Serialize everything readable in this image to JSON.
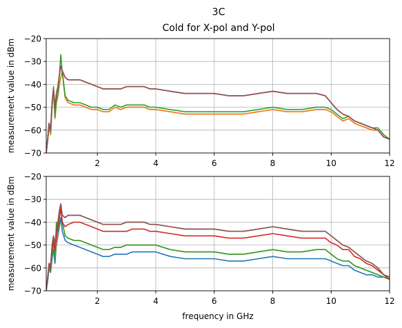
{
  "title": "3C",
  "subtitle": "Cold for X-pol and Y-pol",
  "chart_data": [
    {
      "type": "line",
      "xlabel": "",
      "ylabel": "measurement value in dBm",
      "xlim": [
        0.25,
        12
      ],
      "ylim": [
        -70,
        -20
      ],
      "xticks": [
        2,
        4,
        6,
        8,
        10,
        12
      ],
      "yticks": [
        -20,
        -30,
        -40,
        -50,
        -60,
        -70
      ],
      "grid": true,
      "x": [
        0.25,
        0.3,
        0.35,
        0.4,
        0.45,
        0.5,
        0.55,
        0.6,
        0.65,
        0.7,
        0.75,
        0.8,
        0.9,
        1.0,
        1.2,
        1.4,
        1.6,
        1.8,
        2.0,
        2.2,
        2.4,
        2.6,
        2.8,
        3.0,
        3.2,
        3.4,
        3.6,
        3.8,
        4.0,
        4.5,
        5.0,
        5.5,
        6.0,
        6.5,
        7.0,
        7.5,
        8.0,
        8.5,
        9.0,
        9.5,
        9.8,
        10.0,
        10.2,
        10.4,
        10.6,
        10.8,
        11.0,
        11.2,
        11.4,
        11.6,
        11.8,
        12.0
      ],
      "series": [
        {
          "color": "#1f77b4",
          "values": [
            -70,
            -65,
            -58,
            -62,
            -50,
            -42,
            -55,
            -48,
            -45,
            -40,
            -37,
            -34,
            -46,
            -48,
            -49,
            -49,
            -50,
            -51,
            -51,
            -52,
            -52,
            -50,
            -51,
            -50,
            -50,
            -50,
            -50,
            -51,
            -51,
            -52,
            -53,
            -53,
            -53,
            -53,
            -53,
            -52,
            -51,
            -52,
            -52,
            -51,
            -51,
            -52,
            -54,
            -56,
            -55,
            -57,
            -58,
            -59,
            -60,
            -60,
            -63,
            -64
          ]
        },
        {
          "color": "#ff7f0e",
          "values": [
            -70,
            -65,
            -58,
            -62,
            -50,
            -42,
            -55,
            -48,
            -45,
            -40,
            -37,
            -34,
            -46,
            -48,
            -49,
            -49,
            -50,
            -51,
            -51,
            -52,
            -52,
            -50,
            -51,
            -50,
            -50,
            -50,
            -50,
            -51,
            -51,
            -52,
            -53,
            -53,
            -53,
            -53,
            -53,
            -52,
            -51,
            -52,
            -52,
            -51,
            -51,
            -52,
            -54,
            -56,
            -55,
            -57,
            -58,
            -59,
            -60,
            -60,
            -63,
            -64
          ]
        },
        {
          "color": "#2ca02c",
          "values": [
            -70,
            -64,
            -57,
            -61,
            -49,
            -41,
            -54,
            -47,
            -44,
            -36,
            -27,
            -35,
            -45,
            -47,
            -48,
            -48,
            -49,
            -50,
            -50,
            -51,
            -51,
            -49,
            -50,
            -49,
            -49,
            -49,
            -49,
            -50,
            -50,
            -51,
            -52,
            -52,
            -52,
            -52,
            -52,
            -51,
            -50,
            -51,
            -51,
            -50,
            -50,
            -51,
            -53,
            -55,
            -54,
            -56,
            -57,
            -58,
            -59,
            -59,
            -62,
            -64
          ]
        },
        {
          "color": "#d62728",
          "values": [
            -70,
            -64,
            -57,
            -60,
            -48,
            -42,
            -50,
            -44,
            -41,
            -36,
            -32,
            -34,
            -37,
            -38,
            -38,
            -38,
            -39,
            -40,
            -41,
            -42,
            -42,
            -42,
            -42,
            -41,
            -41,
            -41,
            -41,
            -42,
            -42,
            -43,
            -44,
            -44,
            -44,
            -45,
            -45,
            -44,
            -43,
            -44,
            -44,
            -44,
            -45,
            -48,
            -51,
            -53,
            -54,
            -56,
            -57,
            -58,
            -59,
            -60,
            -63,
            -64
          ]
        },
        {
          "color": "#9467bd",
          "values": [
            -70,
            -64,
            -57,
            -60,
            -48,
            -42,
            -50,
            -44,
            -41,
            -36,
            -32,
            -34,
            -37,
            -38,
            -38,
            -38,
            -39,
            -40,
            -41,
            -42,
            -42,
            -42,
            -42,
            -41,
            -41,
            -41,
            -41,
            -42,
            -42,
            -43,
            -44,
            -44,
            -44,
            -45,
            -45,
            -44,
            -43,
            -44,
            -44,
            -44,
            -45,
            -48,
            -51,
            -53,
            -54,
            -56,
            -57,
            -58,
            -59,
            -60,
            -63,
            -64
          ]
        },
        {
          "color": "#8c564b",
          "values": [
            -70,
            -64,
            -57,
            -60,
            -48,
            -42,
            -50,
            -44,
            -41,
            -36,
            -32,
            -34,
            -37,
            -38,
            -38,
            -38,
            -39,
            -40,
            -41,
            -42,
            -42,
            -42,
            -42,
            -41,
            -41,
            -41,
            -41,
            -42,
            -42,
            -43,
            -44,
            -44,
            -44,
            -45,
            -45,
            -44,
            -43,
            -44,
            -44,
            -44,
            -45,
            -48,
            -51,
            -53,
            -54,
            -56,
            -57,
            -58,
            -59,
            -60,
            -63,
            -64
          ]
        }
      ]
    },
    {
      "type": "line",
      "xlabel": "frequency in GHz",
      "ylabel": "measurement value in dBm",
      "xlim": [
        0.25,
        12
      ],
      "ylim": [
        -70,
        -20
      ],
      "xticks": [
        2,
        4,
        6,
        8,
        10,
        12
      ],
      "yticks": [
        -20,
        -30,
        -40,
        -50,
        -60,
        -70
      ],
      "grid": true,
      "x": [
        0.25,
        0.3,
        0.35,
        0.4,
        0.45,
        0.5,
        0.55,
        0.6,
        0.65,
        0.7,
        0.75,
        0.8,
        0.9,
        1.0,
        1.2,
        1.4,
        1.6,
        1.8,
        2.0,
        2.2,
        2.4,
        2.6,
        2.8,
        3.0,
        3.2,
        3.4,
        3.6,
        3.8,
        4.0,
        4.5,
        5.0,
        5.5,
        6.0,
        6.5,
        7.0,
        7.5,
        8.0,
        8.5,
        9.0,
        9.5,
        9.8,
        10.0,
        10.2,
        10.4,
        10.6,
        10.8,
        11.0,
        11.2,
        11.4,
        11.6,
        11.8,
        12.0
      ],
      "series": [
        {
          "color": "#1f77b4",
          "values": [
            -70,
            -66,
            -60,
            -62,
            -56,
            -52,
            -58,
            -50,
            -46,
            -42,
            -38,
            -44,
            -48,
            -49,
            -50,
            -51,
            -52,
            -53,
            -54,
            -55,
            -55,
            -54,
            -54,
            -54,
            -53,
            -53,
            -53,
            -53,
            -53,
            -55,
            -56,
            -56,
            -56,
            -57,
            -57,
            -56,
            -55,
            -56,
            -56,
            -56,
            -56,
            -57,
            -58,
            -59,
            -59,
            -61,
            -62,
            -63,
            -63,
            -64,
            -64,
            -65
          ]
        },
        {
          "color": "#ff7f0e",
          "values": [
            -70,
            -65,
            -59,
            -61,
            -54,
            -48,
            -56,
            -48,
            -44,
            -38,
            -33,
            -40,
            -46,
            -47,
            -48,
            -48,
            -49,
            -50,
            -51,
            -52,
            -52,
            -51,
            -51,
            -50,
            -50,
            -50,
            -50,
            -50,
            -50,
            -52,
            -53,
            -53,
            -53,
            -54,
            -54,
            -53,
            -52,
            -53,
            -53,
            -52,
            -52,
            -54,
            -56,
            -57,
            -57,
            -59,
            -60,
            -61,
            -62,
            -63,
            -64,
            -65
          ]
        },
        {
          "color": "#2ca02c",
          "values": [
            -70,
            -65,
            -59,
            -61,
            -54,
            -48,
            -56,
            -40,
            -44,
            -38,
            -33,
            -40,
            -46,
            -47,
            -48,
            -48,
            -49,
            -50,
            -51,
            -52,
            -52,
            -51,
            -51,
            -50,
            -50,
            -50,
            -50,
            -50,
            -50,
            -52,
            -53,
            -53,
            -53,
            -54,
            -54,
            -53,
            -52,
            -53,
            -53,
            -52,
            -52,
            -54,
            -56,
            -57,
            -57,
            -59,
            -60,
            -61,
            -62,
            -63,
            -64,
            -65
          ]
        },
        {
          "color": "#d62728",
          "values": [
            -70,
            -64,
            -58,
            -60,
            -52,
            -48,
            -52,
            -46,
            -42,
            -38,
            -34,
            -40,
            -42,
            -41,
            -40,
            -40,
            -41,
            -42,
            -43,
            -44,
            -44,
            -44,
            -44,
            -44,
            -43,
            -43,
            -43,
            -44,
            -44,
            -45,
            -46,
            -46,
            -46,
            -47,
            -47,
            -46,
            -45,
            -46,
            -47,
            -47,
            -47,
            -49,
            -50,
            -52,
            -52,
            -55,
            -56,
            -58,
            -59,
            -61,
            -63,
            -65
          ]
        },
        {
          "color": "#9467bd",
          "values": [
            -70,
            -64,
            -58,
            -59,
            -50,
            -46,
            -50,
            -43,
            -40,
            -35,
            -32,
            -37,
            -38,
            -37,
            -37,
            -37,
            -38,
            -39,
            -40,
            -41,
            -41,
            -41,
            -41,
            -40,
            -40,
            -40,
            -40,
            -41,
            -41,
            -42,
            -43,
            -43,
            -43,
            -44,
            -44,
            -43,
            -42,
            -43,
            -44,
            -44,
            -44,
            -46,
            -48,
            -50,
            -51,
            -53,
            -55,
            -57,
            -58,
            -60,
            -63,
            -64
          ]
        },
        {
          "color": "#8c564b",
          "values": [
            -70,
            -64,
            -58,
            -59,
            -50,
            -46,
            -50,
            -43,
            -40,
            -35,
            -32,
            -37,
            -38,
            -37,
            -37,
            -37,
            -38,
            -39,
            -40,
            -41,
            -41,
            -41,
            -41,
            -40,
            -40,
            -40,
            -40,
            -41,
            -41,
            -42,
            -43,
            -43,
            -43,
            -44,
            -44,
            -43,
            -42,
            -43,
            -44,
            -44,
            -44,
            -46,
            -48,
            -50,
            -51,
            -53,
            -55,
            -57,
            -58,
            -60,
            -63,
            -64
          ]
        }
      ]
    }
  ]
}
